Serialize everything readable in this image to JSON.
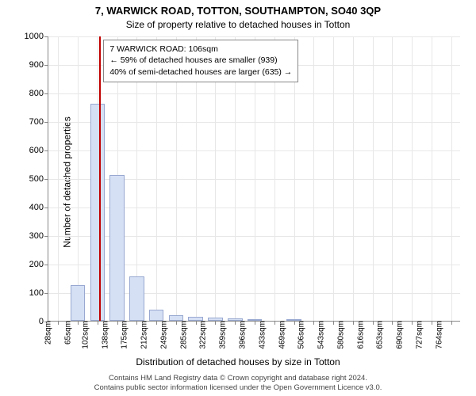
{
  "title": "7, WARWICK ROAD, TOTTON, SOUTHAMPTON, SO40 3QP",
  "subtitle": "Size of property relative to detached houses in Totton",
  "ylabel": "Number of detached properties",
  "xlabel": "Distribution of detached houses by size in Totton",
  "footer_line1": "Contains HM Land Registry data © Crown copyright and database right 2024.",
  "footer_line2": "Contains public sector information licensed under the Open Government Licence v3.0.",
  "chart": {
    "type": "bar",
    "ylim": [
      0,
      1000
    ],
    "yticks": [
      0,
      100,
      200,
      300,
      400,
      500,
      600,
      700,
      800,
      900,
      1000
    ],
    "xticks": [
      "28sqm",
      "65sqm",
      "102sqm",
      "138sqm",
      "175sqm",
      "212sqm",
      "249sqm",
      "285sqm",
      "322sqm",
      "359sqm",
      "396sqm",
      "433sqm",
      "469sqm",
      "506sqm",
      "543sqm",
      "580sqm",
      "616sqm",
      "653sqm",
      "690sqm",
      "727sqm",
      "764sqm"
    ],
    "values": [
      0,
      125,
      760,
      510,
      155,
      40,
      20,
      15,
      10,
      8,
      5,
      0,
      3,
      0,
      0,
      0,
      0,
      0,
      0,
      0,
      0
    ],
    "bar_fill": "#d6e0f5",
    "bar_stroke": "#98a8d0",
    "grid_color": "#e7e7e7",
    "axis_color": "#888888",
    "bar_width": 0.75,
    "marker": {
      "x_index": 2.1,
      "color": "#c00000"
    },
    "annotation": {
      "line1": "7 WARWICK ROAD: 106sqm",
      "line2": "← 59% of detached houses are smaller (939)",
      "line3": "40% of semi-detached houses are larger (635) →",
      "x_index": 2.3,
      "y_value": 990
    },
    "title_fontsize": 13,
    "subtitle_fontsize": 12,
    "label_fontsize": 12,
    "tick_fontsize": 11,
    "xtick_fontsize": 10,
    "footer_fontsize": 9.5,
    "background_color": "#ffffff"
  }
}
